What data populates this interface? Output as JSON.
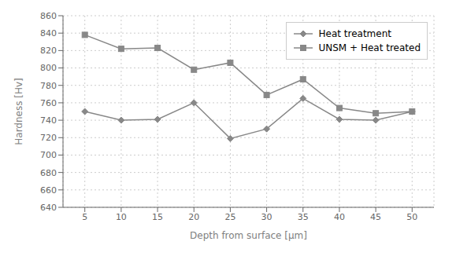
{
  "chart_data": {
    "type": "line",
    "xlabel": "Depth from surface [μm]",
    "ylabel": "Hardness [Hv]",
    "x": [
      5,
      10,
      15,
      20,
      25,
      30,
      35,
      40,
      45,
      50
    ],
    "series": [
      {
        "name": "Heat treatment",
        "color": "#888888",
        "marker": "diamond",
        "line_style": "solid",
        "values": [
          750,
          740,
          741,
          760,
          719,
          730,
          765,
          741,
          740,
          750
        ]
      },
      {
        "name": "UNSM + Heat treated",
        "color": "#888888",
        "marker": "square",
        "line_style": "solid",
        "values": [
          838,
          822,
          823,
          798,
          806,
          769,
          787,
          754,
          748,
          750
        ]
      }
    ],
    "xlim": [
      2,
      53
    ],
    "xticks": [
      5,
      10,
      15,
      20,
      25,
      30,
      35,
      40,
      45,
      50
    ],
    "ylim": [
      640,
      860
    ],
    "yticks": [
      640,
      660,
      680,
      700,
      720,
      740,
      760,
      780,
      800,
      820,
      840,
      860
    ],
    "grid": true,
    "legend": "upper right"
  }
}
